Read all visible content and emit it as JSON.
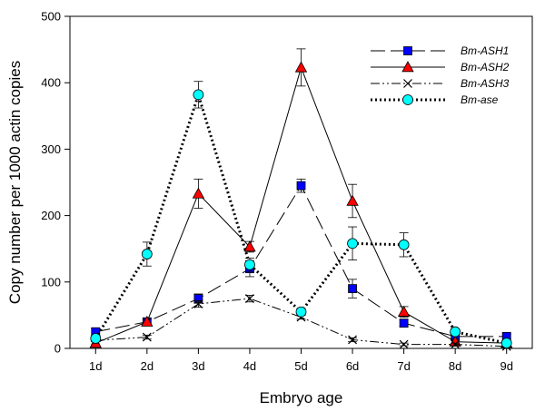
{
  "chart_data": {
    "type": "line",
    "title": "",
    "xlabel": "Embryo age",
    "ylabel": "Copy number per 1000 actin copies",
    "categories": [
      "1d",
      "2d",
      "3d",
      "4d",
      "5d",
      "6d",
      "7d",
      "8d",
      "9d"
    ],
    "ylim": [
      0,
      500
    ],
    "yticks": [
      0,
      100,
      200,
      300,
      400,
      500
    ],
    "grid": false,
    "legend_position": "top-right",
    "series": [
      {
        "name": "Bm-ASH1",
        "values": [
          25,
          40,
          75,
          120,
          245,
          90,
          38,
          18,
          18
        ],
        "errors": [
          5,
          4,
          7,
          12,
          10,
          14,
          5,
          5,
          4
        ],
        "marker": "square",
        "line_style": "long-dash",
        "marker_color": "#0000ff"
      },
      {
        "name": "Bm-ASH2",
        "values": [
          8,
          40,
          233,
          153,
          423,
          222,
          55,
          10,
          8
        ],
        "errors": [
          3,
          4,
          22,
          8,
          28,
          25,
          8,
          4,
          3
        ],
        "marker": "triangle",
        "line_style": "solid",
        "marker_color": "#ff0000"
      },
      {
        "name": "Bm-ASH3",
        "values": [
          12,
          17,
          67,
          75,
          47,
          13,
          6,
          6,
          3
        ],
        "errors": [
          2,
          3,
          5,
          5,
          3,
          3,
          2,
          2,
          2
        ],
        "marker": "x",
        "line_style": "dash-dot-dot",
        "marker_color": "#000000"
      },
      {
        "name": "Bm-ase",
        "values": [
          15,
          142,
          382,
          126,
          55,
          158,
          156,
          25,
          8
        ],
        "errors": [
          4,
          18,
          20,
          10,
          5,
          25,
          18,
          4,
          3
        ],
        "marker": "circle",
        "line_style": "dotted",
        "marker_color": "#00ffff"
      }
    ]
  }
}
